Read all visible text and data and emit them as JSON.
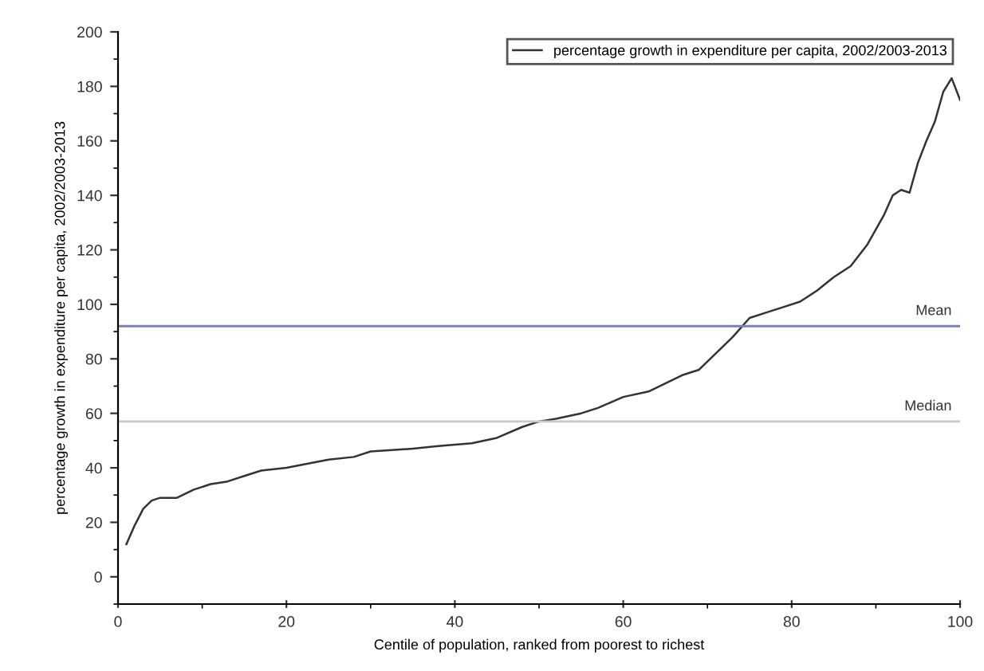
{
  "chart_data": {
    "type": "line",
    "xlabel": "Centile of population, ranked from poorest to richest",
    "ylabel": "percentage growth in expenditure per capita, 2002/2003-2013",
    "series": [
      {
        "name": "percentage growth in expenditure per capita, 2002/2003-2013",
        "color": "#333333",
        "x": [
          1,
          2,
          3,
          4,
          5,
          7,
          9,
          11,
          13,
          15,
          17,
          20,
          25,
          28,
          30,
          35,
          38,
          42,
          45,
          48,
          50,
          52,
          55,
          57,
          60,
          63,
          65,
          67,
          69,
          71,
          73,
          75,
          77,
          79,
          81,
          83,
          85,
          87,
          89,
          91,
          92,
          93,
          94,
          95,
          96,
          97,
          98,
          99,
          100
        ],
        "values": [
          12,
          19,
          25,
          28,
          29,
          29,
          32,
          34,
          35,
          37,
          39,
          40,
          43,
          44,
          46,
          47,
          48,
          49,
          51,
          55,
          57,
          58,
          60,
          62,
          66,
          68,
          71,
          74,
          76,
          82,
          88,
          95,
          97,
          99,
          101,
          105,
          110,
          114,
          122,
          133,
          140,
          142,
          141,
          152,
          160,
          167,
          178,
          183,
          175
        ]
      }
    ],
    "xlim": [
      0,
      100
    ],
    "xticks": [
      0,
      20,
      40,
      60,
      80,
      100
    ],
    "ylim": [
      -10,
      200
    ],
    "yticks": [
      0,
      20,
      40,
      60,
      80,
      100,
      120,
      140,
      160,
      180,
      200
    ],
    "ref_lines": [
      {
        "axis": "y",
        "value": 92,
        "label": "Mean",
        "color": "#7a7fc0"
      },
      {
        "axis": "y",
        "value": 57,
        "label": "Median",
        "color": "#c8c8c8"
      }
    ],
    "legend": "top right",
    "grid": false,
    "marker": "none",
    "line_style": "solid"
  }
}
